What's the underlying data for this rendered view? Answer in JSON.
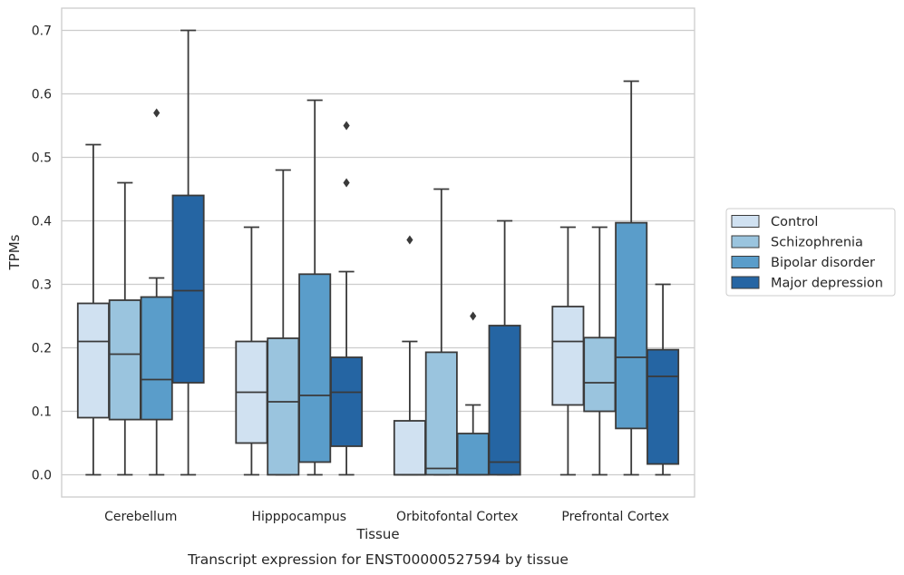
{
  "chart_data": {
    "type": "box",
    "caption": "Transcript expression for ENST00000527594 by tissue",
    "xlabel": "Tissue",
    "ylabel": "TPMs",
    "ylim": [
      -0.035,
      0.735
    ],
    "yticks": [
      "0.0",
      "0.1",
      "0.2",
      "0.3",
      "0.4",
      "0.5",
      "0.6",
      "0.7"
    ],
    "grid": "horizontal",
    "legend_position": "right",
    "categories": [
      "Cerebellum",
      "Hipppocampus",
      "Orbitofontal Cortex",
      "Prefrontal Cortex"
    ],
    "series": [
      {
        "name": "Control",
        "color": "#d0e1f1",
        "boxes": [
          {
            "min": 0.0,
            "q1": 0.09,
            "median": 0.21,
            "q3": 0.27,
            "max": 0.52,
            "outliers": []
          },
          {
            "min": 0.0,
            "q1": 0.05,
            "median": 0.13,
            "q3": 0.21,
            "max": 0.39,
            "outliers": []
          },
          {
            "min": 0.0,
            "q1": 0.0,
            "median": 0.0,
            "q3": 0.085,
            "max": 0.21,
            "outliers": [
              0.37
            ]
          },
          {
            "min": 0.0,
            "q1": 0.11,
            "median": 0.21,
            "q3": 0.265,
            "max": 0.39,
            "outliers": []
          }
        ]
      },
      {
        "name": "Schizophrenia",
        "color": "#9ac4de",
        "boxes": [
          {
            "min": 0.0,
            "q1": 0.087,
            "median": 0.19,
            "q3": 0.275,
            "max": 0.46,
            "outliers": []
          },
          {
            "min": 0.0,
            "q1": 0.0,
            "median": 0.115,
            "q3": 0.215,
            "max": 0.48,
            "outliers": []
          },
          {
            "min": 0.0,
            "q1": 0.0,
            "median": 0.01,
            "q3": 0.193,
            "max": 0.45,
            "outliers": []
          },
          {
            "min": 0.0,
            "q1": 0.1,
            "median": 0.145,
            "q3": 0.216,
            "max": 0.39,
            "outliers": []
          }
        ]
      },
      {
        "name": "Bipolar disorder",
        "color": "#5a9dca",
        "boxes": [
          {
            "min": 0.0,
            "q1": 0.087,
            "median": 0.15,
            "q3": 0.28,
            "max": 0.31,
            "outliers": [
              0.57
            ]
          },
          {
            "min": 0.0,
            "q1": 0.02,
            "median": 0.125,
            "q3": 0.316,
            "max": 0.59,
            "outliers": []
          },
          {
            "min": 0.0,
            "q1": 0.0,
            "median": 0.0,
            "q3": 0.065,
            "max": 0.11,
            "outliers": [
              0.25
            ]
          },
          {
            "min": 0.0,
            "q1": 0.073,
            "median": 0.185,
            "q3": 0.397,
            "max": 0.62,
            "outliers": []
          }
        ]
      },
      {
        "name": "Major depression",
        "color": "#2565a3",
        "boxes": [
          {
            "min": 0.0,
            "q1": 0.145,
            "median": 0.29,
            "q3": 0.44,
            "max": 0.7,
            "outliers": []
          },
          {
            "min": 0.0,
            "q1": 0.045,
            "median": 0.13,
            "q3": 0.185,
            "max": 0.32,
            "outliers": [
              0.46,
              0.55
            ]
          },
          {
            "min": 0.0,
            "q1": 0.0,
            "median": 0.02,
            "q3": 0.235,
            "max": 0.4,
            "outliers": []
          },
          {
            "min": 0.0,
            "q1": 0.017,
            "median": 0.155,
            "q3": 0.197,
            "max": 0.3,
            "outliers": []
          }
        ]
      }
    ]
  }
}
